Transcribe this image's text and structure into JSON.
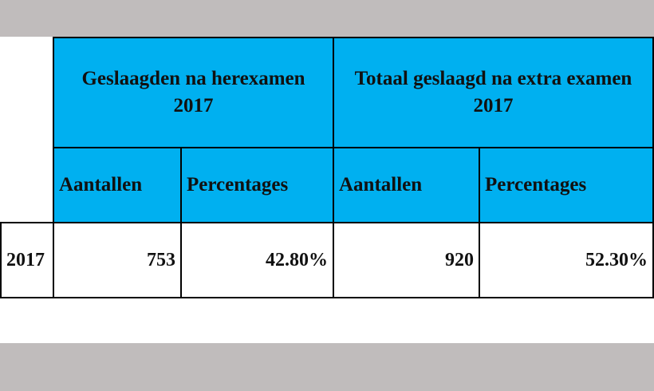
{
  "table": {
    "group_headers": [
      {
        "line1": "Geslaagden na herexamen",
        "line2": "2017"
      },
      {
        "line1": "Totaal geslaagd na extra examen",
        "line2": "2017"
      }
    ],
    "sub_headers": [
      "Aantallen",
      "Percentages",
      "Aantallen",
      "Percentages"
    ],
    "rows": [
      {
        "year": "2017",
        "cells": [
          "753",
          "42.80%",
          "920",
          "52.30%"
        ]
      }
    ]
  },
  "colors": {
    "header_background": "#00b0f0",
    "page_background": "#c0bcbc"
  }
}
